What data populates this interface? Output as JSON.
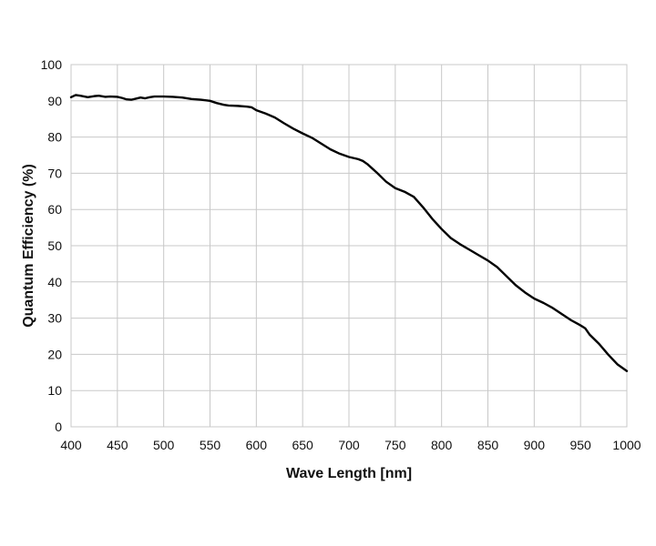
{
  "chart_data": {
    "type": "line",
    "title": "",
    "xlabel": "Wave Length [nm]",
    "ylabel": "Quantum Efficiency (%)",
    "xlim": [
      400,
      1000
    ],
    "ylim": [
      0,
      100
    ],
    "x_ticks": [
      400,
      450,
      500,
      550,
      600,
      650,
      700,
      750,
      800,
      850,
      900,
      950,
      1000
    ],
    "y_ticks": [
      0,
      10,
      20,
      30,
      40,
      50,
      60,
      70,
      80,
      90,
      100
    ],
    "grid": true,
    "legend": "none",
    "colors": {
      "line": "#000000",
      "grid": "#c8c8c8",
      "frame": "#c8c8c8"
    },
    "series": [
      {
        "x": [
          400,
          405,
          410,
          418,
          425,
          430,
          437,
          442,
          450,
          455,
          460,
          465,
          470,
          475,
          480,
          485,
          490,
          500,
          510,
          515,
          520,
          530,
          540,
          550,
          557,
          565,
          570,
          580,
          590,
          595,
          600,
          610,
          620,
          630,
          640,
          650,
          660,
          670,
          680,
          690,
          700,
          710,
          715,
          720,
          730,
          740,
          750,
          760,
          770,
          780,
          790,
          800,
          810,
          820,
          830,
          840,
          850,
          860,
          870,
          880,
          890,
          900,
          910,
          920,
          930,
          940,
          950,
          955,
          960,
          970,
          980,
          990,
          1000
        ],
        "y": [
          91.0,
          91.6,
          91.4,
          91.0,
          91.3,
          91.4,
          91.1,
          91.2,
          91.1,
          90.8,
          90.4,
          90.3,
          90.6,
          90.9,
          90.7,
          91.0,
          91.2,
          91.2,
          91.1,
          91.0,
          90.9,
          90.5,
          90.3,
          90.0,
          89.4,
          88.9,
          88.7,
          88.6,
          88.4,
          88.2,
          87.4,
          86.5,
          85.4,
          83.8,
          82.3,
          81.0,
          79.8,
          78.2,
          76.6,
          75.4,
          74.5,
          73.9,
          73.4,
          72.5,
          70.2,
          67.7,
          65.9,
          64.9,
          63.5,
          60.6,
          57.4,
          54.6,
          52.1,
          50.4,
          48.9,
          47.4,
          45.9,
          44.1,
          41.6,
          39.1,
          37.1,
          35.4,
          34.2,
          32.8,
          31.1,
          29.4,
          28.0,
          27.2,
          25.4,
          22.9,
          19.9,
          17.2,
          15.4
        ]
      }
    ]
  }
}
